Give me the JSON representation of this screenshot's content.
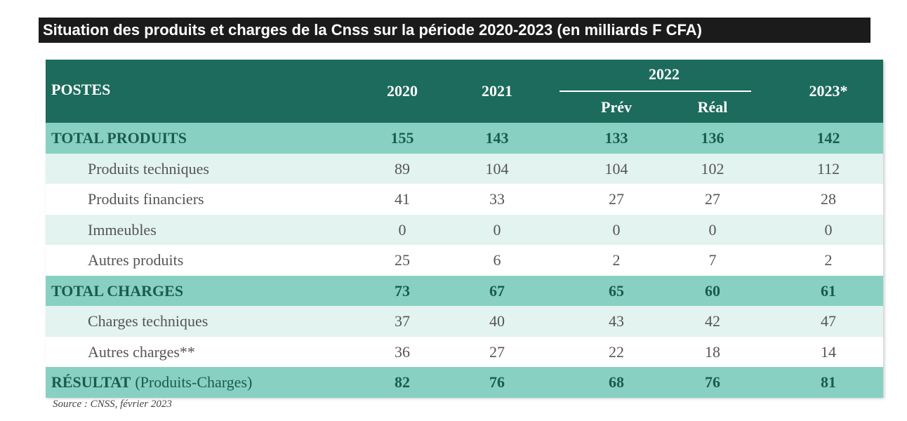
{
  "title": "Situation des produits et charges de la Cnss sur la période 2020-2023 (en milliards F CFA)",
  "table": {
    "header": {
      "postes": "POSTES",
      "years": [
        "2020",
        "2021"
      ],
      "group": "2022",
      "group_cols": [
        "Prév",
        "Réal"
      ],
      "last": "2023*"
    },
    "rows": [
      {
        "label": "TOTAL PRODUITS",
        "values": [
          155,
          143,
          133,
          136,
          142
        ]
      },
      {
        "label": "Produits techniques",
        "values": [
          89,
          104,
          104,
          102,
          112
        ]
      },
      {
        "label": "Produits financiers",
        "values": [
          41,
          33,
          27,
          27,
          28
        ]
      },
      {
        "label": "Immeubles",
        "values": [
          0,
          0,
          0,
          0,
          0
        ]
      },
      {
        "label": "Autres produits",
        "values": [
          25,
          6,
          2,
          7,
          2
        ]
      },
      {
        "label": "TOTAL CHARGES",
        "values": [
          73,
          67,
          65,
          60,
          61
        ]
      },
      {
        "label": "Charges techniques",
        "values": [
          37,
          40,
          43,
          42,
          47
        ]
      },
      {
        "label": "Autres charges**",
        "values": [
          36,
          27,
          22,
          18,
          14
        ]
      },
      {
        "label": "RÉSULTAT",
        "note": "(Produits-Charges)",
        "values": [
          82,
          76,
          68,
          76,
          81
        ]
      }
    ],
    "source": "Source : CNSS, février 2023"
  }
}
